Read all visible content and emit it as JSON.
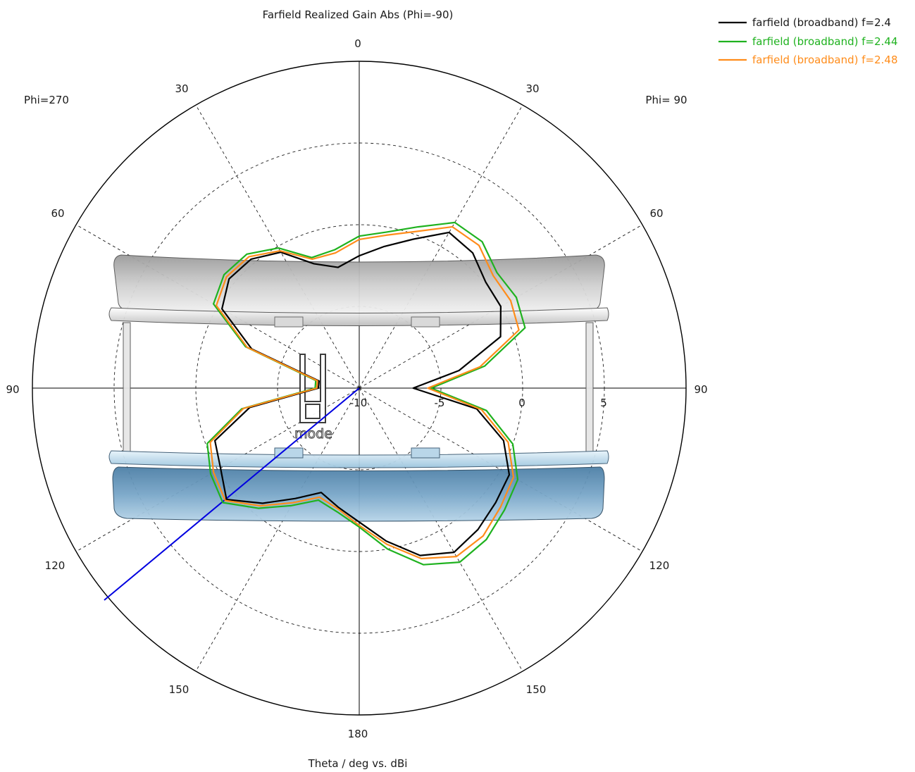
{
  "chart_data": {
    "type": "polar",
    "title": "Farfield Realized Gain Abs (Phi=-90)",
    "xlabel": "Theta / deg vs. dBi",
    "side_labels": {
      "left": "Phi=270",
      "right": "Phi= 90"
    },
    "angle_ticks": {
      "top": "0",
      "upper_right": "30",
      "mid_upper_right": "60",
      "right": "90",
      "mid_lower_right": "120",
      "lower_right": "150",
      "bottom": "180",
      "lower_left": "150",
      "mid_lower_left": "120",
      "left": "90",
      "mid_upper_left": "60",
      "upper_left": "30"
    },
    "radial_ticks": [
      "-10",
      "-5",
      "0",
      "5"
    ],
    "radial_range_dBi": [
      -10,
      10
    ],
    "grid": true,
    "legend_position": "top-right",
    "model_label": "mode",
    "colors": {
      "f2_4": "#000000",
      "f2_44": "#1fb21f",
      "f2_48": "#ff8c1a",
      "axis_line": "#0000e0"
    },
    "series": [
      {
        "name": "farfield (broadband) f=2.4",
        "color": "#000000",
        "theta_deg": [
          0,
          10,
          20,
          30,
          40,
          50,
          60,
          70,
          80,
          90,
          100,
          110,
          120,
          130,
          140,
          150,
          160,
          170,
          180,
          190,
          200,
          210,
          220,
          230,
          240,
          250,
          260,
          270,
          280,
          290,
          300,
          310,
          320,
          330,
          340,
          350,
          360
        ],
        "gain_dBi": [
          -1.9,
          -2.5,
          -1.9,
          -0.4,
          0.3,
          0.4,
          -0.3,
          -3.0,
          -7.5,
          -7.5,
          -3.2,
          -0.6,
          -0.2,
          0.6,
          -0.8,
          -2.2,
          -3.2,
          -2.6,
          -1.8,
          -0.5,
          0.9,
          1.6,
          1.3,
          0.9,
          0.6,
          -0.6,
          -2.7,
          -6.7,
          -3.8,
          -0.8,
          0.0,
          0.1,
          0.8,
          1.0,
          -0.3,
          -1.2,
          -1.9
        ]
      },
      {
        "name": "farfield (broadband) f=2.44",
        "color": "#1fb21f",
        "theta_deg": [
          0,
          10,
          20,
          30,
          40,
          50,
          60,
          70,
          80,
          90,
          100,
          110,
          120,
          130,
          140,
          150,
          160,
          170,
          180,
          190,
          200,
          210,
          220,
          230,
          240,
          250,
          260,
          270,
          280,
          290,
          300,
          310,
          320,
          330,
          340,
          350,
          360
        ],
        "gain_dBi": [
          -0.7,
          -1.4,
          -1.5,
          -0.1,
          0.7,
          0.8,
          0.3,
          -2.6,
          -7.3,
          -7.3,
          -2.7,
          -0.1,
          0.5,
          0.9,
          -0.4,
          -1.7,
          -2.7,
          -2.3,
          -1.5,
          0.0,
          1.5,
          2.3,
          2.1,
          1.6,
          1.2,
          0.0,
          -2.1,
          -5.6,
          -2.2,
          0.8,
          1.1,
          1.0,
          1.7,
          1.7,
          0.5,
          -0.3,
          -0.7
        ]
      },
      {
        "name": "farfield (broadband) f=2.48",
        "color": "#ff8c1a",
        "theta_deg": [
          0,
          10,
          20,
          30,
          40,
          50,
          60,
          70,
          80,
          90,
          100,
          110,
          120,
          130,
          140,
          150,
          160,
          170,
          180,
          190,
          200,
          210,
          220,
          230,
          240,
          250,
          260,
          270,
          280,
          290,
          300,
          310,
          320,
          330,
          340,
          350,
          360
        ],
        "gain_dBi": [
          -0.9,
          -1.6,
          -1.6,
          -0.3,
          0.5,
          0.6,
          0.1,
          -2.7,
          -7.4,
          -7.4,
          -2.8,
          -0.3,
          0.3,
          0.7,
          -0.6,
          -1.9,
          -2.9,
          -2.5,
          -1.6,
          -0.3,
          1.1,
          1.9,
          1.8,
          1.3,
          0.9,
          -0.3,
          -2.4,
          -5.8,
          -2.5,
          0.4,
          0.7,
          0.7,
          1.4,
          1.4,
          0.2,
          -0.5,
          -0.9
        ]
      }
    ]
  }
}
